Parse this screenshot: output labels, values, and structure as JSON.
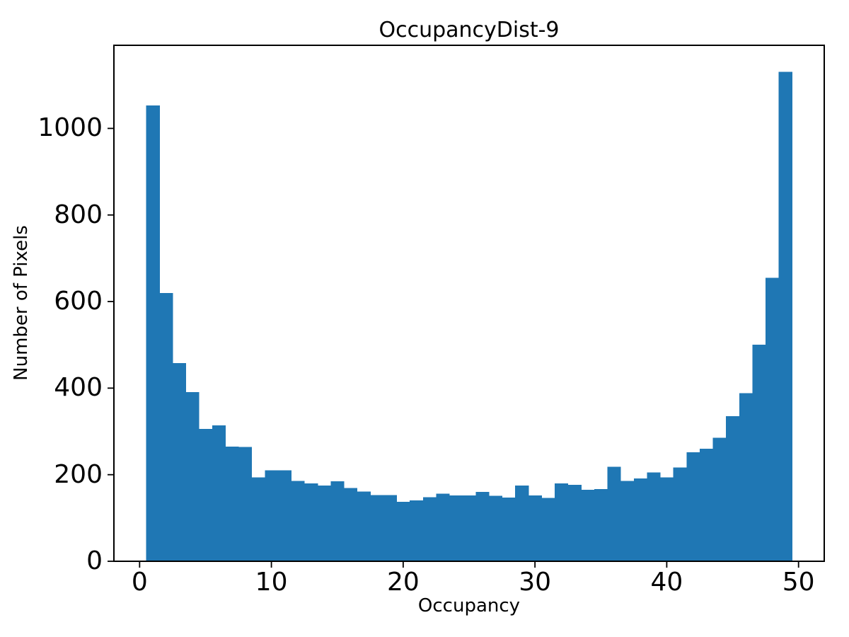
{
  "chart_data": {
    "type": "bar",
    "subtype": "histogram",
    "title": "OccupancyDist-9",
    "xlabel": "Occupancy",
    "ylabel": "Number of Pixels",
    "bar_color": "#1f77b4",
    "axis_color": "#000000",
    "bin_start": 0.5,
    "bin_width": 1,
    "bin_centers": [
      1,
      2,
      3,
      4,
      5,
      6,
      7,
      8,
      9,
      10,
      11,
      12,
      13,
      14,
      15,
      16,
      17,
      18,
      19,
      20,
      21,
      22,
      23,
      24,
      25,
      26,
      27,
      28,
      29,
      30,
      31,
      32,
      33,
      34,
      35,
      36,
      37,
      38,
      39,
      40,
      41,
      42,
      43,
      44,
      45,
      46,
      47,
      48,
      49
    ],
    "values": [
      1053,
      620,
      458,
      391,
      306,
      314,
      265,
      264,
      194,
      210,
      210,
      186,
      180,
      175,
      185,
      169,
      161,
      153,
      153,
      137,
      141,
      148,
      156,
      152,
      152,
      160,
      151,
      147,
      175,
      152,
      146,
      180,
      177,
      165,
      167,
      218,
      186,
      191,
      205,
      194,
      217,
      252,
      260,
      285,
      335,
      388,
      500,
      655,
      1131
    ],
    "xticks": [
      0,
      10,
      20,
      30,
      40,
      50
    ],
    "yticks": [
      0,
      200,
      400,
      600,
      800,
      1000
    ],
    "xlim": [
      -1.95,
      51.95
    ],
    "ylim": [
      0,
      1192
    ],
    "grid": false,
    "legend": "none"
  }
}
